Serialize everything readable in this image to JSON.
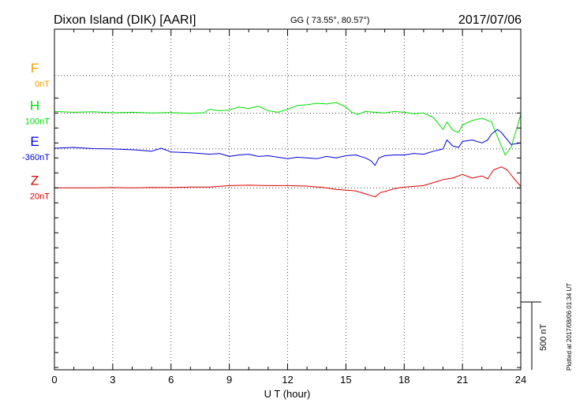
{
  "header": {
    "station": "Dixon Island (DIK)  [AARI]",
    "coords": "GG ( 73.55°,  80.57°)",
    "date": "2017/07/06"
  },
  "side_note": "Plotted at 2017/08/06 01:34 UT",
  "chart_data": {
    "type": "line",
    "xlabel": "U T (hour)",
    "xlim": [
      0,
      24
    ],
    "xticks": [
      0,
      3,
      6,
      9,
      12,
      15,
      18,
      21,
      24
    ],
    "xtick_labels": [
      "0",
      "3",
      "6",
      "9",
      "12",
      "15",
      "18",
      "21",
      "24"
    ],
    "ylim": [
      -1015,
      1260
    ],
    "grid": "dotted",
    "scale_bar": {
      "value": 500,
      "label": "500 nT"
    },
    "series": [
      {
        "name": "F",
        "baseline_label": "0nT",
        "baseline": 950,
        "color": "#f5a000",
        "points": []
      },
      {
        "name": "H",
        "baseline_label": "100nT",
        "baseline": 700,
        "color": "#00dd00",
        "points": [
          [
            0,
            710
          ],
          [
            1,
            705
          ],
          [
            2,
            708
          ],
          [
            3,
            702
          ],
          [
            4,
            705
          ],
          [
            5,
            700
          ],
          [
            6,
            703
          ],
          [
            7,
            698
          ],
          [
            7.7,
            702
          ],
          [
            8,
            725
          ],
          [
            8.5,
            715
          ],
          [
            9,
            720
          ],
          [
            9.5,
            740
          ],
          [
            10,
            730
          ],
          [
            10.5,
            745
          ],
          [
            11,
            715
          ],
          [
            11.5,
            705
          ],
          [
            12,
            725
          ],
          [
            12.5,
            750
          ],
          [
            13,
            755
          ],
          [
            13.5,
            765
          ],
          [
            14,
            760
          ],
          [
            14.5,
            770
          ],
          [
            15,
            740
          ],
          [
            15.3,
            705
          ],
          [
            15.6,
            690
          ],
          [
            16,
            710
          ],
          [
            16.5,
            705
          ],
          [
            17,
            700
          ],
          [
            17.5,
            710
          ],
          [
            18,
            705
          ],
          [
            18.5,
            695
          ],
          [
            19,
            700
          ],
          [
            19.5,
            670
          ],
          [
            20,
            590
          ],
          [
            20.2,
            640
          ],
          [
            20.5,
            585
          ],
          [
            20.8,
            570
          ],
          [
            21,
            620
          ],
          [
            21.5,
            650
          ],
          [
            22,
            665
          ],
          [
            22.5,
            640
          ],
          [
            22.8,
            540
          ],
          [
            23,
            480
          ],
          [
            23.2,
            420
          ],
          [
            23.5,
            470
          ],
          [
            23.8,
            600
          ],
          [
            24,
            690
          ]
        ]
      },
      {
        "name": "E",
        "baseline_label": "-360nT",
        "baseline": 460,
        "color": "#0000dd",
        "points": [
          [
            0,
            465
          ],
          [
            1,
            470
          ],
          [
            2,
            462
          ],
          [
            3,
            460
          ],
          [
            4,
            455
          ],
          [
            5,
            445
          ],
          [
            5.5,
            465
          ],
          [
            6,
            440
          ],
          [
            7,
            435
          ],
          [
            8,
            425
          ],
          [
            8.5,
            430
          ],
          [
            9,
            410
          ],
          [
            9.5,
            420
          ],
          [
            10,
            425
          ],
          [
            10.5,
            410
          ],
          [
            11,
            415
          ],
          [
            11.5,
            405
          ],
          [
            12,
            395
          ],
          [
            12.5,
            405
          ],
          [
            13,
            400
          ],
          [
            13.5,
            395
          ],
          [
            14,
            410
          ],
          [
            14.5,
            400
          ],
          [
            15,
            415
          ],
          [
            15.5,
            420
          ],
          [
            16,
            400
          ],
          [
            16.3,
            380
          ],
          [
            16.5,
            350
          ],
          [
            16.7,
            400
          ],
          [
            17,
            415
          ],
          [
            17.5,
            420
          ],
          [
            18,
            420
          ],
          [
            18.5,
            430
          ],
          [
            19,
            425
          ],
          [
            19.5,
            445
          ],
          [
            20,
            460
          ],
          [
            20.2,
            520
          ],
          [
            20.5,
            480
          ],
          [
            20.8,
            470
          ],
          [
            21,
            510
          ],
          [
            21.5,
            520
          ],
          [
            22,
            500
          ],
          [
            22.3,
            520
          ],
          [
            22.5,
            560
          ],
          [
            22.8,
            590
          ],
          [
            23,
            570
          ],
          [
            23.5,
            490
          ],
          [
            24,
            500
          ]
        ]
      },
      {
        "name": "Z",
        "baseline_label": "20nT",
        "baseline": 200,
        "color": "#dd0000",
        "points": [
          [
            0,
            200
          ],
          [
            1,
            200
          ],
          [
            2,
            200
          ],
          [
            3,
            202
          ],
          [
            4,
            200
          ],
          [
            5,
            203
          ],
          [
            6,
            202
          ],
          [
            7,
            205
          ],
          [
            8,
            205
          ],
          [
            9,
            215
          ],
          [
            10,
            218
          ],
          [
            11,
            215
          ],
          [
            12,
            215
          ],
          [
            13,
            212
          ],
          [
            14,
            200
          ],
          [
            14.5,
            190
          ],
          [
            15,
            185
          ],
          [
            15.5,
            180
          ],
          [
            16,
            160
          ],
          [
            16.5,
            140
          ],
          [
            16.8,
            170
          ],
          [
            17,
            175
          ],
          [
            17.5,
            195
          ],
          [
            18,
            205
          ],
          [
            18.5,
            210
          ],
          [
            19,
            215
          ],
          [
            19.5,
            235
          ],
          [
            20,
            255
          ],
          [
            20.5,
            265
          ],
          [
            21,
            290
          ],
          [
            21.5,
            265
          ],
          [
            22,
            280
          ],
          [
            22.3,
            260
          ],
          [
            22.6,
            320
          ],
          [
            23,
            340
          ],
          [
            23.3,
            320
          ],
          [
            23.6,
            270
          ],
          [
            24,
            210
          ]
        ]
      }
    ]
  }
}
